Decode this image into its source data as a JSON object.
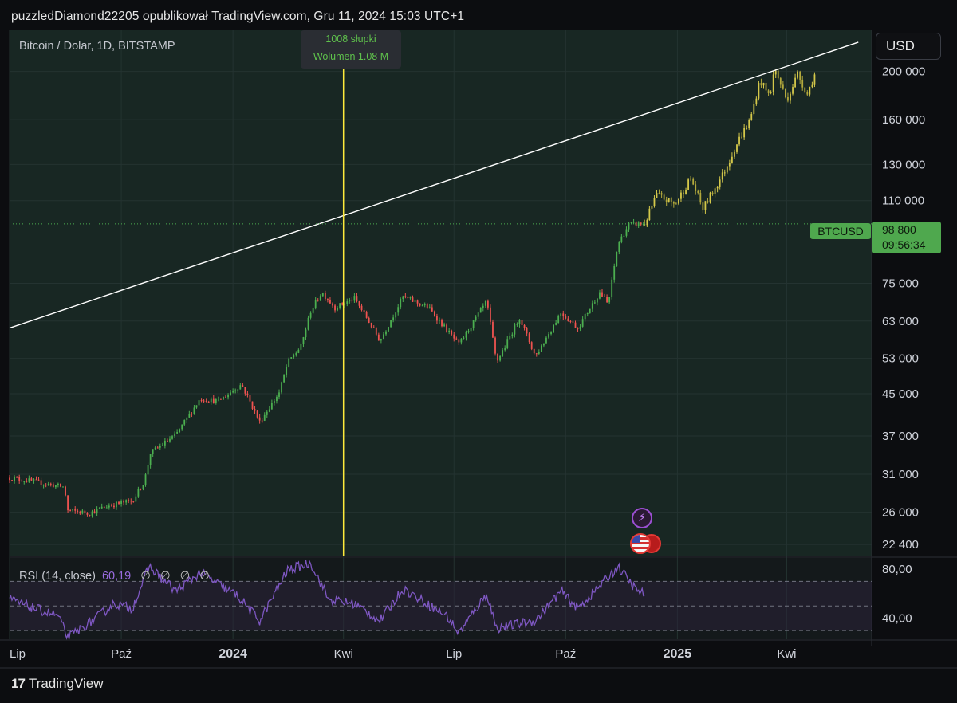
{
  "header": {
    "text": "puzzledDiamond22205 opublikował TradingView.com, Gru 11, 2024 15:03 UTC+1"
  },
  "legend": {
    "symbol": "Bitcoin / Dolar, 1D, BITSTAMP"
  },
  "currency_button": "USD",
  "crosshair_tooltip": {
    "bars": "1008 słupki",
    "volume": "Wolumen 1.08 M"
  },
  "last_price": {
    "symbol_label": "BTCUSD",
    "price": "98 800",
    "countdown": "09:56:34"
  },
  "rsi_legend": {
    "label": "RSI (14, close)",
    "value": "60,19",
    "null_glyphs": [
      "∅",
      "∅",
      "∅",
      "∅"
    ]
  },
  "footer": {
    "brand": "TradingView",
    "logo_glyph": "17"
  },
  "icons": [
    "lightning-icon",
    "us-flag-icon"
  ],
  "colors": {
    "up": "#4caf50",
    "down": "#ef5350",
    "projection": "#d4c84a",
    "rsi": "#7e57c2",
    "crosshair": "#ffeb3b",
    "trendline": "#ffffff"
  },
  "chart_data": [
    {
      "type": "candlestick",
      "title": "Bitcoin / Dolar, 1D, BITSTAMP",
      "y_scale": "log",
      "y_ticks": [
        200000,
        160000,
        130000,
        110000,
        75000,
        63000,
        53000,
        45000,
        37000,
        31000,
        26000,
        22400
      ],
      "y_tick_labels": [
        "200 000",
        "160 000",
        "130 000",
        "110 000",
        "75 000",
        "63 000",
        "53 000",
        "45 000",
        "37 000",
        "31 000",
        "26 000",
        "22 400"
      ],
      "x_tick_labels": [
        "Lip",
        "Paź",
        "2024",
        "Kwi",
        "Lip",
        "Paź",
        "2025",
        "Kwi"
      ],
      "x_tick_dates": [
        "2023-07-01",
        "2023-10-01",
        "2024-01-01",
        "2024-04-01",
        "2024-07-01",
        "2024-10-01",
        "2025-01-01",
        "2025-04-01"
      ],
      "x_range": [
        "2023-07-01",
        "2025-06-10"
      ],
      "y_range": [
        21200,
        242000
      ],
      "last_price": 98800,
      "price_path": [
        [
          "2023-07-01",
          30500
        ],
        [
          "2023-07-20",
          30000
        ],
        [
          "2023-08-15",
          29200
        ],
        [
          "2023-08-18",
          26200
        ],
        [
          "2023-09-05",
          25900
        ],
        [
          "2023-09-20",
          26800
        ],
        [
          "2023-10-10",
          27400
        ],
        [
          "2023-10-20",
          30000
        ],
        [
          "2023-10-25",
          34200
        ],
        [
          "2023-11-15",
          37200
        ],
        [
          "2023-12-05",
          44000
        ],
        [
          "2023-12-20",
          43500
        ],
        [
          "2024-01-08",
          47000
        ],
        [
          "2024-01-23",
          39500
        ],
        [
          "2024-02-08",
          45200
        ],
        [
          "2024-02-15",
          52000
        ],
        [
          "2024-02-26",
          56000
        ],
        [
          "2024-03-05",
          66000
        ],
        [
          "2024-03-14",
          72000
        ],
        [
          "2024-03-25",
          67000
        ],
        [
          "2024-04-10",
          70000
        ],
        [
          "2024-04-20",
          64000
        ],
        [
          "2024-05-01",
          57500
        ],
        [
          "2024-05-20",
          70500
        ],
        [
          "2024-06-10",
          67000
        ],
        [
          "2024-07-05",
          56500
        ],
        [
          "2024-07-28",
          69000
        ],
        [
          "2024-08-05",
          52000
        ],
        [
          "2024-08-24",
          64000
        ],
        [
          "2024-09-06",
          53500
        ],
        [
          "2024-09-27",
          65500
        ],
        [
          "2024-10-11",
          61000
        ],
        [
          "2024-10-29",
          72000
        ],
        [
          "2024-11-05",
          68000
        ],
        [
          "2024-11-13",
          90000
        ],
        [
          "2024-11-22",
          98500
        ],
        [
          "2024-12-05",
          98800
        ]
      ],
      "projection_path": [
        [
          "2024-12-05",
          98800
        ],
        [
          "2024-12-15",
          113000
        ],
        [
          "2024-12-30",
          108000
        ],
        [
          "2025-01-12",
          122000
        ],
        [
          "2025-01-22",
          106000
        ],
        [
          "2025-02-08",
          125000
        ],
        [
          "2025-02-20",
          145000
        ],
        [
          "2025-03-02",
          160000
        ],
        [
          "2025-03-10",
          192000
        ],
        [
          "2025-03-18",
          178000
        ],
        [
          "2025-03-22",
          203000
        ],
        [
          "2025-04-01",
          175000
        ],
        [
          "2025-04-10",
          198000
        ],
        [
          "2025-04-18",
          180000
        ],
        [
          "2025-04-25",
          200000
        ]
      ],
      "trendline": [
        [
          "2023-07-01",
          61000
        ],
        [
          "2025-05-30",
          229000
        ]
      ],
      "crosshair_date": "2024-04-01"
    },
    {
      "type": "line",
      "title": "RSI (14, close)",
      "y_ticks": [
        80,
        40
      ],
      "y_tick_labels": [
        "80,00",
        "40,00"
      ],
      "band_levels": [
        70,
        50,
        30
      ],
      "y_range": [
        23,
        89
      ],
      "rsi_path": [
        [
          "2023-07-01",
          55
        ],
        [
          "2023-07-25",
          47
        ],
        [
          "2023-08-10",
          42
        ],
        [
          "2023-08-18",
          24
        ],
        [
          "2023-09-10",
          40
        ],
        [
          "2023-09-25",
          52
        ],
        [
          "2023-10-10",
          48
        ],
        [
          "2023-10-24",
          82
        ],
        [
          "2023-11-15",
          62
        ],
        [
          "2023-12-05",
          77
        ],
        [
          "2024-01-05",
          58
        ],
        [
          "2024-01-23",
          38
        ],
        [
          "2024-02-15",
          79
        ],
        [
          "2024-03-05",
          85
        ],
        [
          "2024-03-20",
          55
        ],
        [
          "2024-04-10",
          52
        ],
        [
          "2024-05-01",
          38
        ],
        [
          "2024-05-20",
          64
        ],
        [
          "2024-06-25",
          42
        ],
        [
          "2024-07-05",
          28
        ],
        [
          "2024-07-28",
          60
        ],
        [
          "2024-08-05",
          32
        ],
        [
          "2024-09-06",
          38
        ],
        [
          "2024-09-27",
          62
        ],
        [
          "2024-10-11",
          48
        ],
        [
          "2024-10-29",
          66
        ],
        [
          "2024-11-13",
          82
        ],
        [
          "2024-11-28",
          63
        ],
        [
          "2024-12-05",
          60
        ]
      ]
    }
  ]
}
